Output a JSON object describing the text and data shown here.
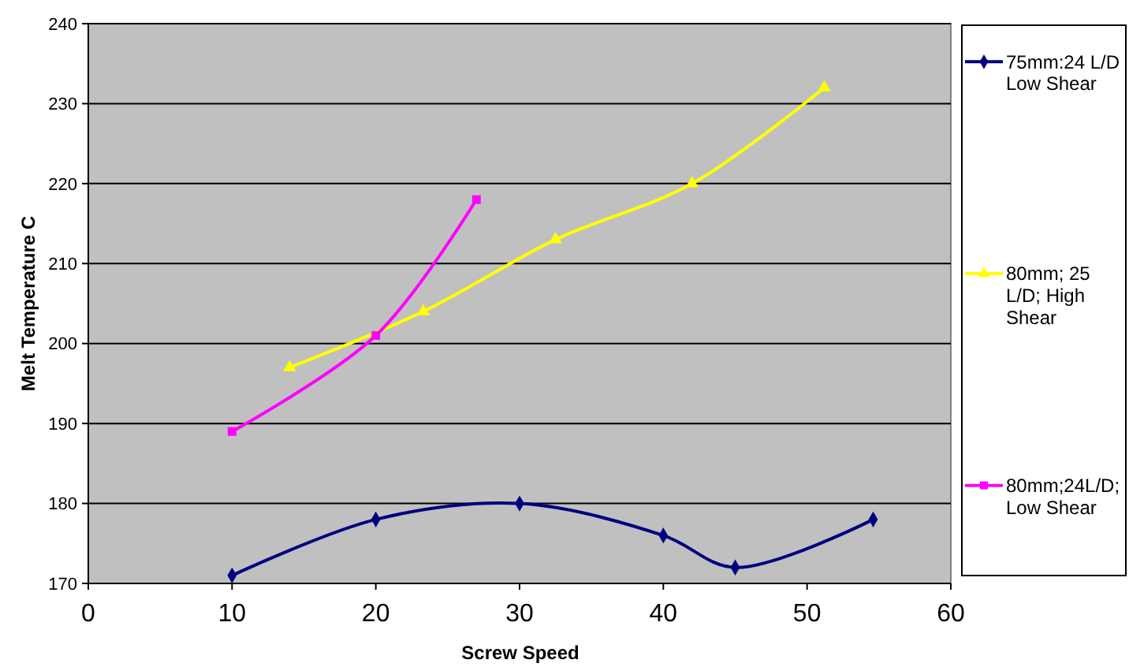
{
  "chart_data": {
    "type": "line",
    "xlabel": "Screw Speed",
    "ylabel": "Melt Temperature C",
    "xlim": [
      0,
      60
    ],
    "xticks": [
      0,
      10,
      20,
      30,
      40,
      50,
      60
    ],
    "ylim": [
      170,
      240
    ],
    "yticks": [
      170,
      180,
      190,
      200,
      210,
      220,
      230,
      240
    ],
    "grid": "y",
    "legend": "right",
    "series": [
      {
        "name": "75mm:24 L/D Low Shear",
        "color": "#000080",
        "marker": "diamond",
        "x": [
          10,
          20,
          30,
          40,
          45,
          54.6
        ],
        "values": [
          171,
          178,
          180,
          176,
          172,
          178
        ]
      },
      {
        "name": "80mm; 25 L/D; High Shear",
        "color": "#ffff00",
        "marker": "triangle",
        "x": [
          14,
          23.3,
          32.5,
          42,
          51.2
        ],
        "values": [
          197,
          204,
          213,
          220,
          232
        ]
      },
      {
        "name": "80mm;24L/D; Low Shear",
        "color": "#ff00ff",
        "marker": "square",
        "x": [
          10,
          20,
          27
        ],
        "values": [
          189,
          201,
          218
        ]
      }
    ]
  }
}
